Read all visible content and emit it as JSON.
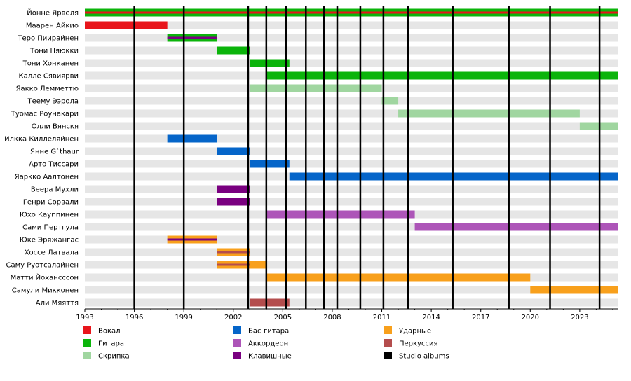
{
  "chart_data": {
    "type": "timeline",
    "title": "",
    "xlabel": "",
    "ylabel": "",
    "x_range": [
      1993,
      2025.3
    ],
    "x_ticks": [
      1993,
      1996,
      1999,
      2002,
      2005,
      2008,
      2011,
      2014,
      2017,
      2020,
      2023
    ],
    "members": [
      "Йонне Ярвеля",
      "Маарен Айкио",
      "Теро Пиирайнен",
      "Тони Няюкки",
      "Тони Хонканен",
      "Калле Сявиярви",
      "Яакко Лемметтю",
      "Теему Ээрола",
      "Туомас Роунакари",
      "Олли Вянскя",
      "Илкка Киллеляйнен",
      "Янне G`thaur",
      "Арто Тиссари",
      "Яаркко Аалтонен",
      "Веера Мухли",
      "Генри Сорвали",
      "Юхо Кауппинен",
      "Сами Пертгула",
      "Юке Эряжангас",
      "Хоссе Латвала",
      "Саму Руотсалайнен",
      "Матти Йохансссон",
      "Самули Микконен",
      "Али Мяяття"
    ],
    "roles": {
      "vocal": {
        "name": "Вокал",
        "color": "#e8151b"
      },
      "guitar": {
        "name": "Гитара",
        "color": "#0bb40b"
      },
      "violin": {
        "name": "Скрипка",
        "color": "#a0d6a0"
      },
      "bass": {
        "name": "Бас-гитара",
        "color": "#0565c9"
      },
      "accordion": {
        "name": "Аккордеон",
        "color": "#ad55b8"
      },
      "keyboards": {
        "name": "Клавишные",
        "color": "#7a0080"
      },
      "drums": {
        "name": "Ударные",
        "color": "#f8a01c"
      },
      "percussion": {
        "name": "Перкуссия",
        "color": "#b44d4d"
      },
      "albums": {
        "name": "Studio albums",
        "color": "#000000"
      }
    },
    "legend_order": [
      [
        "vocal",
        "guitar",
        "violin"
      ],
      [
        "bass",
        "accordion",
        "keyboards"
      ],
      [
        "drums",
        "percussion",
        "albums"
      ]
    ],
    "bars": [
      {
        "member": 0,
        "role": "guitar",
        "start": 1993,
        "end": 2025.3
      },
      {
        "member": 0,
        "role": "vocal",
        "start": 1993,
        "end": 2025.3,
        "thin": true
      },
      {
        "member": 1,
        "role": "vocal",
        "start": 1993,
        "end": 1998
      },
      {
        "member": 2,
        "role": "guitar",
        "start": 1998,
        "end": 2001
      },
      {
        "member": 2,
        "role": "keyboards",
        "start": 1998,
        "end": 2001,
        "thin": true
      },
      {
        "member": 3,
        "role": "guitar",
        "start": 2001,
        "end": 2003
      },
      {
        "member": 4,
        "role": "guitar",
        "start": 2003,
        "end": 2005.4
      },
      {
        "member": 5,
        "role": "guitar",
        "start": 2004,
        "end": 2025.3
      },
      {
        "member": 6,
        "role": "violin",
        "start": 2003,
        "end": 2011
      },
      {
        "member": 7,
        "role": "violin",
        "start": 2011,
        "end": 2012
      },
      {
        "member": 8,
        "role": "violin",
        "start": 2012,
        "end": 2023
      },
      {
        "member": 9,
        "role": "violin",
        "start": 2023,
        "end": 2025.3
      },
      {
        "member": 10,
        "role": "bass",
        "start": 1998,
        "end": 2001
      },
      {
        "member": 11,
        "role": "bass",
        "start": 2001,
        "end": 2003
      },
      {
        "member": 12,
        "role": "bass",
        "start": 2003,
        "end": 2005.4
      },
      {
        "member": 13,
        "role": "bass",
        "start": 2005.4,
        "end": 2025.3
      },
      {
        "member": 14,
        "role": "keyboards",
        "start": 2001,
        "end": 2003
      },
      {
        "member": 15,
        "role": "keyboards",
        "start": 2001,
        "end": 2003
      },
      {
        "member": 16,
        "role": "accordion",
        "start": 2004,
        "end": 2013
      },
      {
        "member": 17,
        "role": "accordion",
        "start": 2013,
        "end": 2025.3
      },
      {
        "member": 18,
        "role": "drums",
        "start": 1998,
        "end": 2001
      },
      {
        "member": 18,
        "role": "keyboards",
        "start": 1998,
        "end": 2001,
        "thin": true
      },
      {
        "member": 19,
        "role": "drums",
        "start": 2001,
        "end": 2003
      },
      {
        "member": 19,
        "role": "percussion",
        "start": 2001,
        "end": 2003,
        "thin": true
      },
      {
        "member": 20,
        "role": "drums",
        "start": 2001,
        "end": 2004
      },
      {
        "member": 20,
        "role": "percussion",
        "start": 2001,
        "end": 2003,
        "thin": true
      },
      {
        "member": 21,
        "role": "drums",
        "start": 2004,
        "end": 2020
      },
      {
        "member": 22,
        "role": "drums",
        "start": 2020,
        "end": 2025.3
      },
      {
        "member": 23,
        "role": "percussion",
        "start": 2003,
        "end": 2005.4
      }
    ],
    "album_lines": [
      1996,
      1999,
      2002.9,
      2004,
      2005.2,
      2006.4,
      2007.5,
      2008.3,
      2009.7,
      2011.1,
      2012.6,
      2015.3,
      2018.7,
      2021.2,
      2024.2
    ]
  }
}
